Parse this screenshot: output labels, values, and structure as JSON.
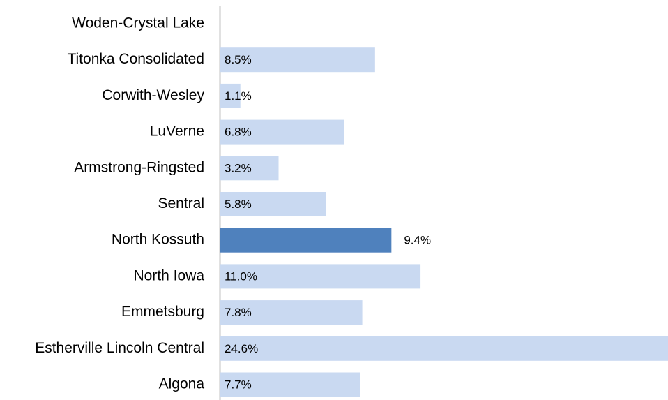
{
  "chart_data": {
    "type": "bar",
    "orientation": "horizontal",
    "categories": [
      "Woden-Crystal Lake",
      "Titonka Consolidated",
      "Corwith-Wesley",
      "LuVerne",
      "Armstrong-Ringsted",
      "Sentral",
      "North Kossuth",
      "North Iowa",
      "Emmetsburg",
      "Estherville Lincoln Central",
      "Algona"
    ],
    "values": [
      null,
      8.5,
      1.1,
      6.8,
      3.2,
      5.8,
      9.4,
      11.0,
      7.8,
      24.6,
      7.7
    ],
    "value_labels": [
      null,
      "8.5%",
      "1.1%",
      "6.8%",
      "3.2%",
      "5.8%",
      "9.4%",
      "11.0%",
      "7.8%",
      "24.6%",
      "7.7%"
    ],
    "colors": [
      "#c9d9f1",
      "#c9d9f1",
      "#c9d9f1",
      "#c9d9f1",
      "#c9d9f1",
      "#c9d9f1",
      "#4f81bd",
      "#c9d9f1",
      "#c9d9f1",
      "#c9d9f1",
      "#c9d9f1"
    ]
  }
}
